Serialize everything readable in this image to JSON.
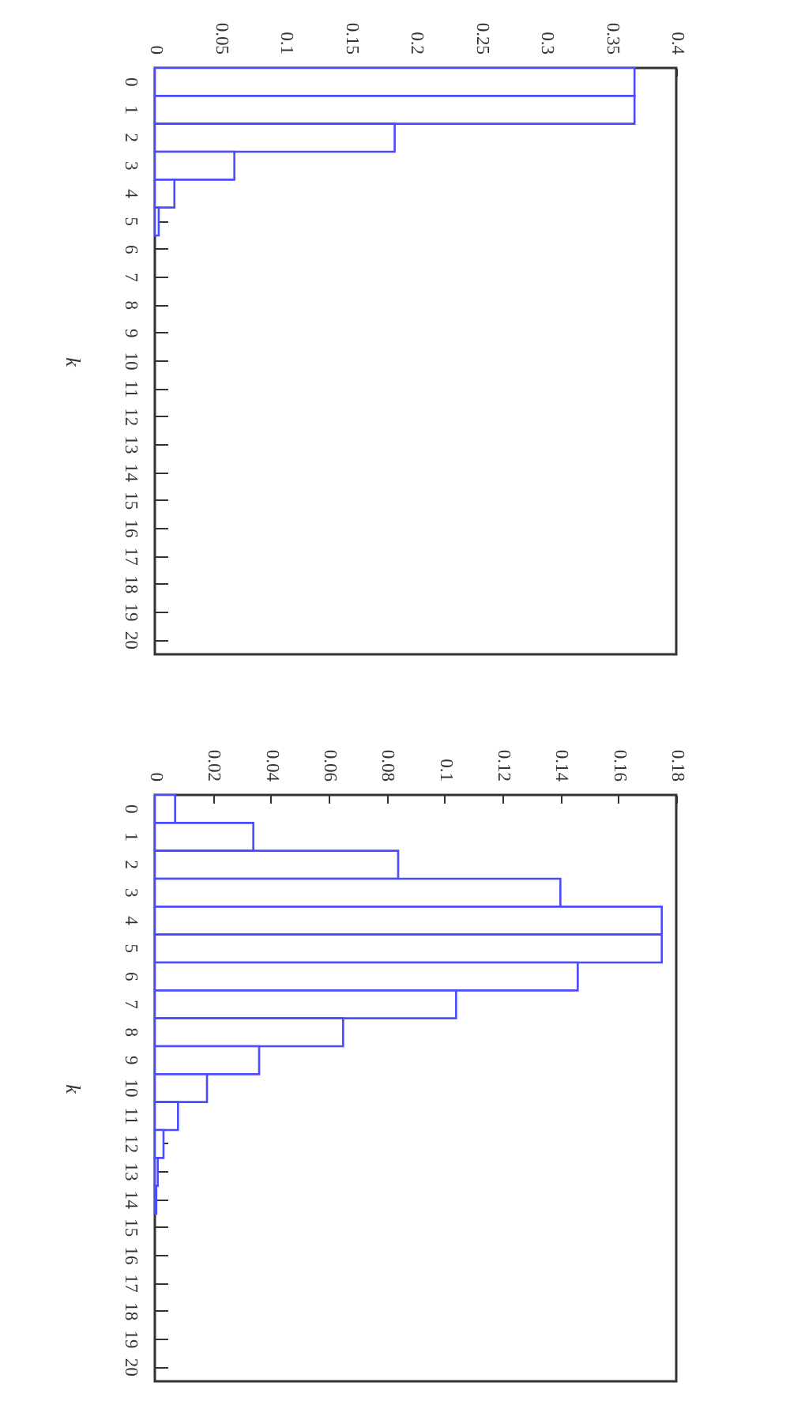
{
  "chart_data": [
    {
      "type": "bar",
      "orientation": "horizontal",
      "ylabel": "k",
      "color": "#4b4bff",
      "categories": [
        "0",
        "1",
        "2",
        "3",
        "4",
        "5",
        "6",
        "7",
        "8",
        "9",
        "10",
        "11",
        "12",
        "13",
        "14",
        "15",
        "16",
        "17",
        "18",
        "19",
        "20"
      ],
      "values": [
        0.368,
        0.368,
        0.184,
        0.061,
        0.015,
        0.003,
        0,
        0,
        0,
        0,
        0,
        0,
        0,
        0,
        0,
        0,
        0,
        0,
        0,
        0,
        0
      ],
      "xlim": [
        0,
        0.4
      ],
      "xticks": [
        0,
        0.05,
        0.1,
        0.15,
        0.2,
        0.25,
        0.3,
        0.35,
        0.4
      ]
    },
    {
      "type": "bar",
      "orientation": "horizontal",
      "ylabel": "k",
      "color": "#4b4bff",
      "categories": [
        "0",
        "1",
        "2",
        "3",
        "4",
        "5",
        "6",
        "7",
        "8",
        "9",
        "10",
        "11",
        "12",
        "13",
        "14",
        "15",
        "16",
        "17",
        "18",
        "19",
        "20"
      ],
      "values": [
        0.007,
        0.034,
        0.084,
        0.14,
        0.175,
        0.175,
        0.146,
        0.104,
        0.065,
        0.036,
        0.018,
        0.008,
        0.003,
        0.001,
        0.0005,
        0,
        0,
        0,
        0,
        0,
        0
      ],
      "xlim": [
        0,
        0.18
      ],
      "xticks": [
        0,
        0.02,
        0.04,
        0.06,
        0.08,
        0.1,
        0.12,
        0.14,
        0.16,
        0.18
      ]
    }
  ]
}
